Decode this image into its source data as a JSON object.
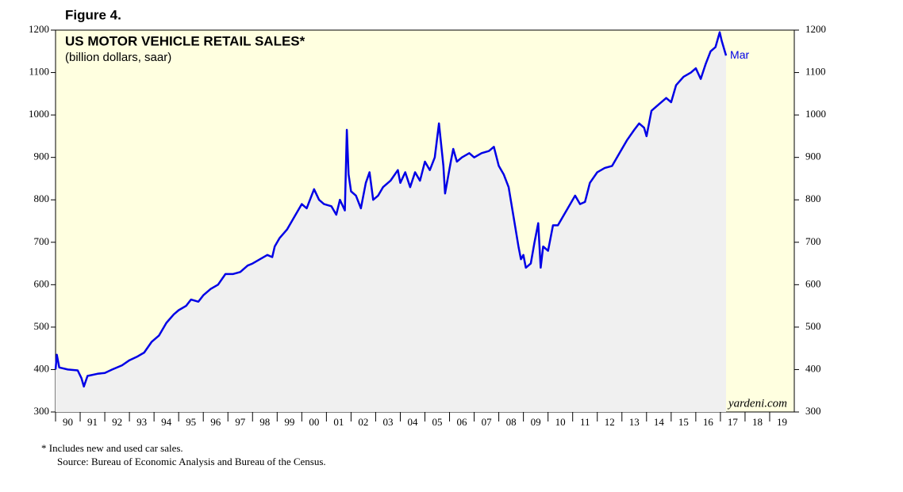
{
  "figure_label": "Figure 4.",
  "chart_data": {
    "type": "area-line",
    "title": "US MOTOR VEHICLE RETAIL SALES*",
    "subtitle": "(billion dollars, saar)",
    "annotation": "Mar",
    "watermark": "yardeni.com",
    "color": "#0000e6",
    "x": [
      1990.0,
      1990.05,
      1990.15,
      1990.5,
      1990.9,
      1991.05,
      1991.15,
      1991.3,
      1991.7,
      1992.0,
      1992.3,
      1992.7,
      1993.0,
      1993.3,
      1993.6,
      1993.9,
      1994.2,
      1994.5,
      1994.8,
      1995.0,
      1995.3,
      1995.5,
      1995.8,
      1996.0,
      1996.3,
      1996.6,
      1996.9,
      1997.2,
      1997.5,
      1997.8,
      1998.0,
      1998.3,
      1998.6,
      1998.8,
      1998.9,
      1999.1,
      1999.4,
      1999.7,
      2000.0,
      2000.2,
      2000.5,
      2000.7,
      2000.9,
      2001.2,
      2001.4,
      2001.55,
      2001.75,
      2001.83,
      2001.9,
      2002.0,
      2002.2,
      2002.4,
      2002.6,
      2002.75,
      2002.9,
      2003.1,
      2003.3,
      2003.6,
      2003.9,
      2004.0,
      2004.2,
      2004.4,
      2004.6,
      2004.8,
      2005.0,
      2005.2,
      2005.4,
      2005.57,
      2005.75,
      2005.82,
      2006.05,
      2006.15,
      2006.3,
      2006.5,
      2006.8,
      2007.0,
      2007.3,
      2007.6,
      2007.8,
      2008.0,
      2008.2,
      2008.4,
      2008.6,
      2008.8,
      2008.9,
      2009.0,
      2009.1,
      2009.3,
      2009.45,
      2009.6,
      2009.7,
      2009.8,
      2010.0,
      2010.2,
      2010.4,
      2010.6,
      2010.9,
      2011.1,
      2011.3,
      2011.5,
      2011.7,
      2012.0,
      2012.3,
      2012.6,
      2012.9,
      2013.2,
      2013.5,
      2013.7,
      2013.9,
      2014.0,
      2014.2,
      2014.5,
      2014.8,
      2015.0,
      2015.2,
      2015.5,
      2015.8,
      2016.0,
      2016.2,
      2016.4,
      2016.6,
      2016.8,
      2016.97,
      2017.05,
      2017.23
    ],
    "series": [
      {
        "name": "US Motor Vehicle Retail Sales",
        "color": "#0000e6",
        "values": [
          400,
          435,
          405,
          400,
          398,
          380,
          360,
          385,
          390,
          392,
          400,
          410,
          422,
          430,
          440,
          465,
          480,
          510,
          530,
          540,
          550,
          565,
          560,
          575,
          590,
          600,
          625,
          625,
          630,
          645,
          650,
          660,
          670,
          665,
          690,
          710,
          730,
          760,
          790,
          780,
          825,
          800,
          790,
          785,
          765,
          800,
          775,
          965,
          860,
          820,
          810,
          780,
          840,
          865,
          800,
          810,
          830,
          845,
          870,
          840,
          865,
          830,
          865,
          845,
          890,
          870,
          900,
          980,
          880,
          815,
          890,
          920,
          890,
          900,
          910,
          900,
          910,
          915,
          925,
          880,
          860,
          830,
          760,
          690,
          660,
          670,
          640,
          650,
          700,
          745,
          640,
          690,
          680,
          740,
          740,
          760,
          790,
          810,
          790,
          795,
          840,
          865,
          875,
          880,
          910,
          940,
          965,
          980,
          970,
          950,
          1010,
          1025,
          1040,
          1030,
          1070,
          1090,
          1100,
          1110,
          1085,
          1120,
          1150,
          1160,
          1195,
          1175,
          1140
        ]
      }
    ],
    "xlim": [
      1990,
      2020
    ],
    "xticks": [
      {
        "value": 1990,
        "label": "90"
      },
      {
        "value": 1991,
        "label": "91"
      },
      {
        "value": 1992,
        "label": "92"
      },
      {
        "value": 1993,
        "label": "93"
      },
      {
        "value": 1994,
        "label": "94"
      },
      {
        "value": 1995,
        "label": "95"
      },
      {
        "value": 1996,
        "label": "96"
      },
      {
        "value": 1997,
        "label": "97"
      },
      {
        "value": 1998,
        "label": "98"
      },
      {
        "value": 1999,
        "label": "99"
      },
      {
        "value": 2000,
        "label": "00"
      },
      {
        "value": 2001,
        "label": "01"
      },
      {
        "value": 2002,
        "label": "02"
      },
      {
        "value": 2003,
        "label": "03"
      },
      {
        "value": 2004,
        "label": "04"
      },
      {
        "value": 2005,
        "label": "05"
      },
      {
        "value": 2006,
        "label": "06"
      },
      {
        "value": 2007,
        "label": "07"
      },
      {
        "value": 2008,
        "label": "08"
      },
      {
        "value": 2009,
        "label": "09"
      },
      {
        "value": 2010,
        "label": "10"
      },
      {
        "value": 2011,
        "label": "11"
      },
      {
        "value": 2012,
        "label": "12"
      },
      {
        "value": 2013,
        "label": "13"
      },
      {
        "value": 2014,
        "label": "14"
      },
      {
        "value": 2015,
        "label": "15"
      },
      {
        "value": 2016,
        "label": "16"
      },
      {
        "value": 2017,
        "label": "17"
      },
      {
        "value": 2018,
        "label": "18"
      },
      {
        "value": 2019,
        "label": "19"
      }
    ],
    "ylim": [
      300,
      1200
    ],
    "yticks": [
      300,
      400,
      500,
      600,
      700,
      800,
      900,
      1000,
      1100,
      1200
    ],
    "footnotes": [
      "*   Includes new and used car sales.",
      "Source: Bureau of Economic Analysis and Bureau of the Census."
    ]
  }
}
